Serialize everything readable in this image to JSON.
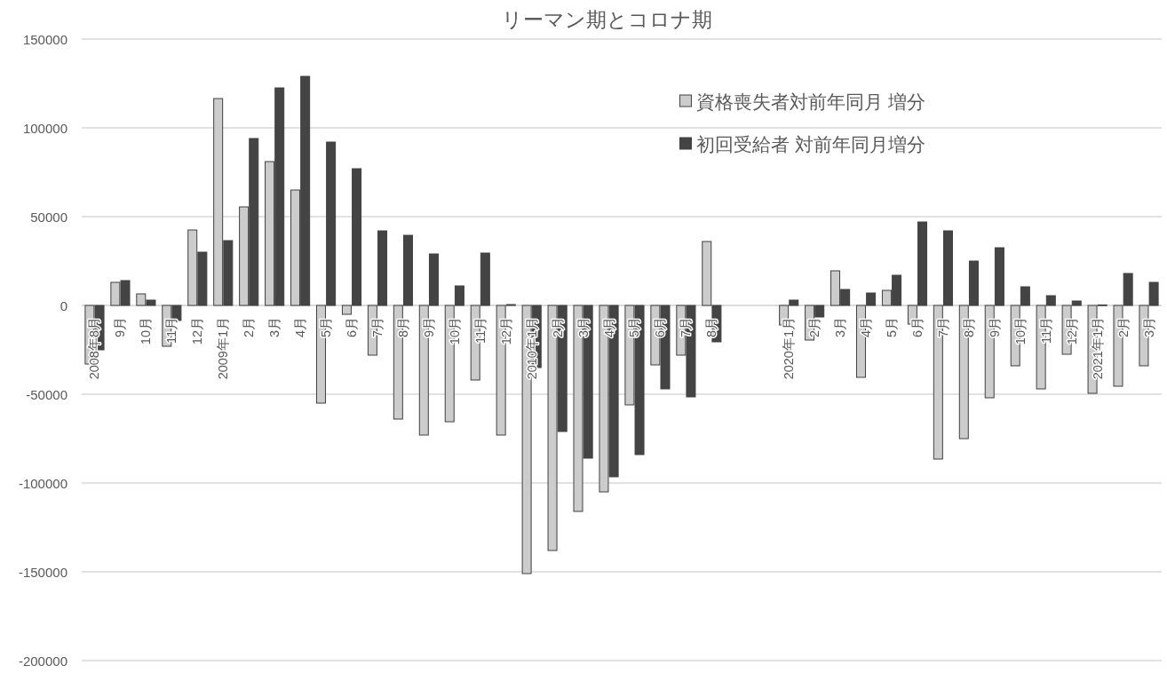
{
  "chart_data": {
    "type": "bar",
    "title": "リーマン期とコロナ期",
    "categories": [
      "2008年8月",
      "9月",
      "10月",
      "11月",
      "12月",
      "2009年1月",
      "2月",
      "3月",
      "4月",
      "5月",
      "6月",
      "7月",
      "8月",
      "9月",
      "10月",
      "11月",
      "12月",
      "2010年1月",
      "2月",
      "3月",
      "4月",
      "5月",
      "6月",
      "7月",
      "8月",
      null,
      null,
      "2020年1月",
      "2月",
      "3月",
      "4月",
      "5月",
      "6月",
      "7月",
      "8月",
      "9月",
      "10月",
      "11月",
      "12月",
      "2021年1月",
      "2月",
      "3月"
    ],
    "series": [
      {
        "name": "資格喪失者対前年同月 増分",
        "color": "#cccccc",
        "values": [
          -33000,
          13000,
          6500,
          -23000,
          42500,
          116500,
          55500,
          81000,
          65000,
          -55000,
          -5000,
          -28000,
          -64000,
          -73000,
          -65500,
          -42000,
          -73000,
          -151000,
          -138000,
          -116000,
          -105000,
          -56000,
          -33500,
          -28000,
          36000,
          null,
          null,
          -11000,
          -19500,
          19500,
          -40500,
          8500,
          -10500,
          -86500,
          -75000,
          -52000,
          -34000,
          -47000,
          -27500,
          -49500,
          -45500,
          -34000
        ]
      },
      {
        "name": "初回受給者 対前年同月増分",
        "color": "#444444",
        "values": [
          -25000,
          14000,
          3000,
          -8500,
          30000,
          36500,
          94000,
          122500,
          129000,
          92000,
          77000,
          42000,
          39500,
          29000,
          11000,
          29500,
          500,
          -35000,
          -71000,
          -86000,
          -96500,
          -84000,
          -47000,
          -51500,
          -20500,
          null,
          null,
          3000,
          -6500,
          9000,
          7000,
          17000,
          47000,
          42000,
          25000,
          32500,
          10500,
          5500,
          2500,
          300,
          18000,
          13000
        ]
      }
    ],
    "ylim": [
      -200000,
      150000
    ],
    "yticks": [
      -200000,
      -150000,
      -100000,
      -50000,
      0,
      50000,
      100000,
      150000
    ],
    "grid": "y",
    "legend": "top right"
  }
}
